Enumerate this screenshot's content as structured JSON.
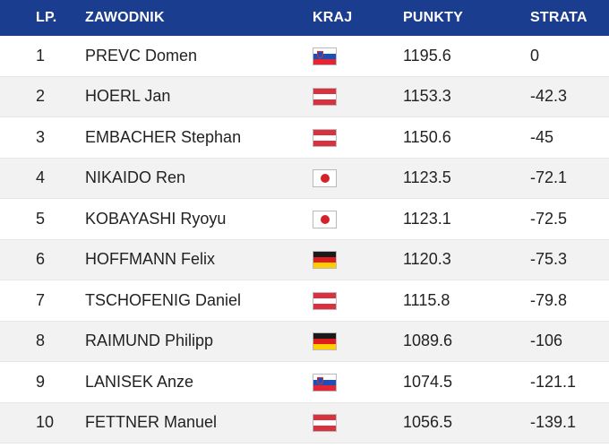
{
  "header": {
    "lp": "LP.",
    "name": "ZAWODNIK",
    "country": "KRAJ",
    "points": "PUNKTY",
    "loss": "STRATA"
  },
  "rows": [
    {
      "lp": "1",
      "name": "PREVC Domen",
      "flag": "slovenia-flag",
      "points": "1195.6",
      "loss": "0"
    },
    {
      "lp": "2",
      "name": "HOERL Jan",
      "flag": "austria-flag",
      "points": "1153.3",
      "loss": "-42.3"
    },
    {
      "lp": "3",
      "name": "EMBACHER Stephan",
      "flag": "austria-flag",
      "points": "1150.6",
      "loss": "-45"
    },
    {
      "lp": "4",
      "name": "NIKAIDO Ren",
      "flag": "japan-flag",
      "points": "1123.5",
      "loss": "-72.1"
    },
    {
      "lp": "5",
      "name": "KOBAYASHI Ryoyu",
      "flag": "japan-flag",
      "points": "1123.1",
      "loss": "-72.5"
    },
    {
      "lp": "6",
      "name": "HOFFMANN Felix",
      "flag": "germany-flag",
      "points": "1120.3",
      "loss": "-75.3"
    },
    {
      "lp": "7",
      "name": "TSCHOFENIG Daniel",
      "flag": "austria-flag",
      "points": "1115.8",
      "loss": "-79.8"
    },
    {
      "lp": "8",
      "name": "RAIMUND Philipp",
      "flag": "germany-flag",
      "points": "1089.6",
      "loss": "-106"
    },
    {
      "lp": "9",
      "name": "LANISEK Anze",
      "flag": "slovenia-flag",
      "points": "1074.5",
      "loss": "-121.1"
    },
    {
      "lp": "10",
      "name": "FETTNER Manuel",
      "flag": "austria-flag",
      "points": "1056.5",
      "loss": "-139.1"
    }
  ],
  "colors": {
    "header_bg": "#1a3d8f",
    "stripe": "#f2f2f2"
  }
}
